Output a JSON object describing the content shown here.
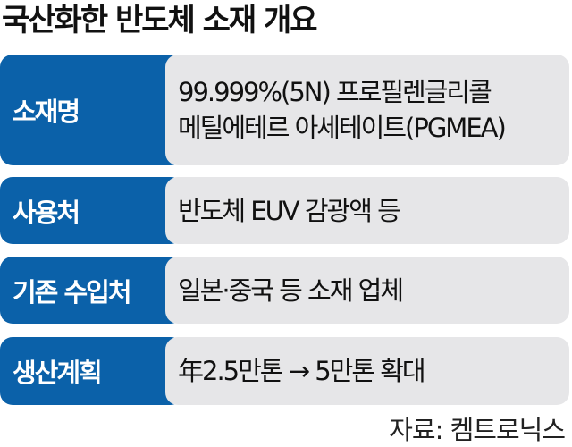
{
  "title": "국산화한 반도체 소재 개요",
  "colors": {
    "label_bg": "#0b61a9",
    "value_bg": "#e6e6e8"
  },
  "rows": [
    {
      "label": "소재명",
      "value_lines": [
        "99.999%(5N) 프로필렌글리콜",
        "메틸에테르 아세테이트(PGMEA)"
      ]
    },
    {
      "label": "사용처",
      "value_lines": [
        "반도체 EUV 감광액 등"
      ]
    },
    {
      "label": "기존 수입처",
      "value_lines": [
        "일본·중국 등 소재 업체"
      ]
    },
    {
      "label": "생산계획",
      "value_lines": [
        "年2.5만톤 → 5만톤 확대"
      ]
    }
  ],
  "source": "자료: 켐트로닉스"
}
